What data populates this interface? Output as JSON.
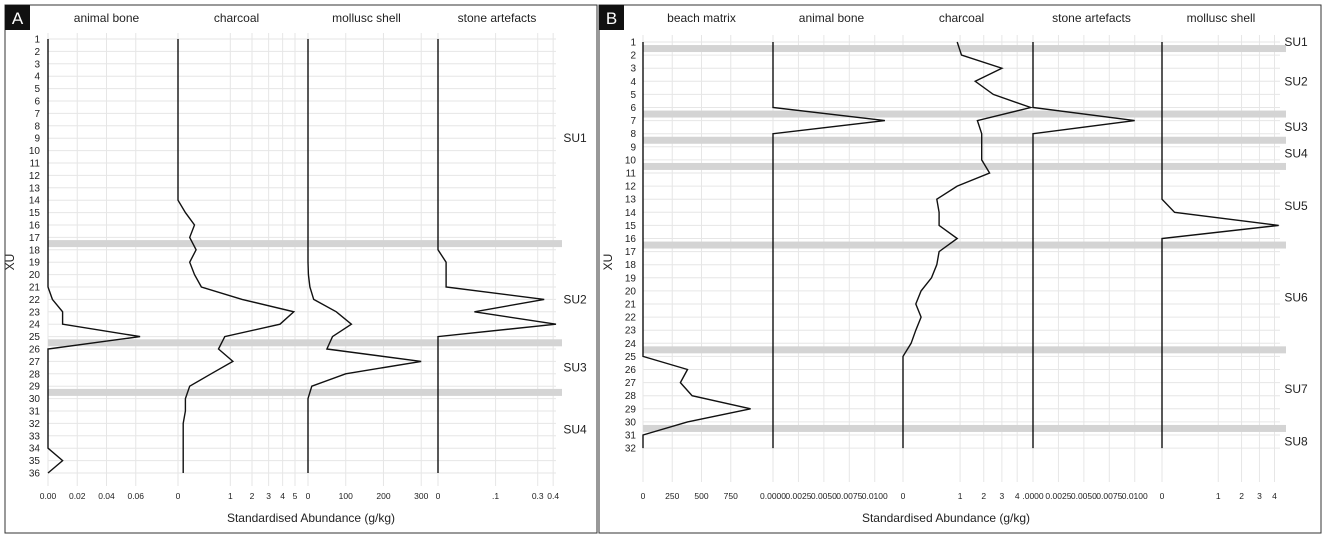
{
  "chart_data": [
    {
      "type": "line",
      "panel_label": "A",
      "ylabel": "XU",
      "xlabel": "Standardised Abundance (g/kg)",
      "y_ticks": [
        "1",
        "2",
        "3",
        "4",
        "5",
        "6",
        "7",
        "8",
        "9",
        "10",
        "11",
        "12",
        "13",
        "14",
        "15",
        "16",
        "17",
        "18",
        "19",
        "20",
        "21",
        "22",
        "23",
        "24",
        "25",
        "26",
        "27",
        "28",
        "29",
        "30",
        "31",
        "32",
        "33",
        "34",
        "35",
        "36"
      ],
      "boundaries": [
        17.5,
        25.5,
        29.5
      ],
      "units": [
        {
          "label": "SU1",
          "y": 9
        },
        {
          "label": "SU2",
          "y": 22
        },
        {
          "label": "SU3",
          "y": 27.5
        },
        {
          "label": "SU4",
          "y": 32.5
        }
      ],
      "series": [
        {
          "name": "animal bone",
          "scale": "linear",
          "xlim": [
            0,
            0.08
          ],
          "ticks": [
            0,
            0.02,
            0.04,
            0.06
          ],
          "tick_labels": [
            "0.00",
            "0.02",
            "0.04",
            "0.06"
          ],
          "values": [
            0,
            0,
            0,
            0,
            0,
            0,
            0,
            0,
            0,
            0,
            0,
            0,
            0,
            0,
            0,
            0,
            0,
            0,
            0,
            0,
            0,
            0.003,
            0.01,
            0.01,
            0.063,
            0,
            0,
            0,
            0,
            0,
            0,
            0,
            0,
            0,
            0.01,
            0
          ]
        },
        {
          "name": "charcoal",
          "scale": "sqrt",
          "xlim": [
            0,
            5
          ],
          "ticks": [
            0,
            1,
            2,
            3,
            4,
            5
          ],
          "tick_labels": [
            "0",
            "1",
            "2",
            "3",
            "4",
            "5"
          ],
          "values": [
            0,
            0,
            0,
            0,
            0,
            0,
            0,
            0,
            0,
            0,
            0,
            0,
            0,
            0,
            0.02,
            0.1,
            0.05,
            0.12,
            0.05,
            0.1,
            0.2,
            1.5,
            4.9,
            3.8,
            0.8,
            0.6,
            1.1,
            0.4,
            0.05,
            0.02,
            0.02,
            0.01,
            0.01,
            0.01,
            0.01,
            0.01
          ]
        },
        {
          "name": "mollusc shell",
          "scale": "linear",
          "xlim": [
            0,
            310
          ],
          "ticks": [
            0,
            100,
            200,
            300
          ],
          "tick_labels": [
            "0",
            "100",
            "200",
            "300"
          ],
          "values": [
            0,
            0,
            0,
            0,
            0,
            0,
            0,
            0,
            0,
            0,
            0,
            0,
            0,
            0,
            0,
            0,
            0,
            0,
            0,
            1,
            5,
            15,
            75,
            115,
            65,
            50,
            300,
            100,
            10,
            0,
            0,
            0,
            0,
            0,
            0,
            0
          ]
        },
        {
          "name": "stone artefacts",
          "scale": "sqrt",
          "xlim": [
            0,
            0.42
          ],
          "ticks": [
            0,
            0.1,
            0.3,
            0.4
          ],
          "tick_labels": [
            "0",
            ".1",
            "0.3",
            "0.4"
          ],
          "values": [
            0,
            0,
            0,
            0,
            0,
            0,
            0,
            0,
            0,
            0,
            0,
            0,
            0,
            0,
            0,
            0,
            0,
            0,
            0.002,
            0.002,
            0.002,
            0.34,
            0.04,
            0.42,
            0,
            0,
            0,
            0,
            0,
            0,
            0,
            0,
            0,
            0,
            0,
            0
          ]
        }
      ]
    },
    {
      "type": "line",
      "panel_label": "B",
      "ylabel": "XU",
      "xlabel": "Standardised Abundance (g/kg)",
      "y_ticks": [
        "1",
        "2",
        "3",
        "4",
        "5",
        "6",
        "7",
        "8",
        "9",
        "10",
        "11",
        "12",
        "13",
        "14",
        "15",
        "16",
        "17",
        "18",
        "19",
        "20",
        "21",
        "22",
        "23",
        "24",
        "25",
        "26",
        "27",
        "28",
        "29",
        "30",
        "31",
        "32"
      ],
      "boundaries": [
        1.5,
        6.5,
        8.5,
        10.5,
        16.5,
        24.5,
        30.5
      ],
      "units": [
        {
          "label": "SU1",
          "y": 1
        },
        {
          "label": "SU2",
          "y": 4
        },
        {
          "label": "SU3",
          "y": 7.5
        },
        {
          "label": "SU4",
          "y": 9.5
        },
        {
          "label": "SU5",
          "y": 13.5
        },
        {
          "label": "SU6",
          "y": 20.5
        },
        {
          "label": "SU7",
          "y": 27.5
        },
        {
          "label": "SU8",
          "y": 31.5
        }
      ],
      "series": [
        {
          "name": "beach matrix",
          "scale": "linear",
          "xlim": [
            0,
            1000
          ],
          "ticks": [
            0,
            250,
            500,
            750
          ],
          "tick_labels": [
            "0",
            "250",
            "500",
            "750"
          ],
          "values": [
            0,
            0,
            0,
            0,
            0,
            0,
            0,
            0,
            0,
            0,
            0,
            0,
            0,
            0,
            0,
            0,
            0,
            0,
            0,
            0,
            0,
            0,
            0,
            0,
            0,
            380,
            320,
            420,
            920,
            380,
            0,
            0
          ]
        },
        {
          "name": "animal bone",
          "scale": "linear",
          "xlim": [
            0,
            0.0115
          ],
          "ticks": [
            0,
            0.0025,
            0.005,
            0.0075,
            0.01
          ],
          "tick_labels": [
            "0.0000",
            "0.0025",
            "0.0050",
            "0.0075",
            "0.0100"
          ],
          "values": [
            0,
            0,
            0,
            0,
            0,
            0,
            0.011,
            0,
            0,
            0,
            0,
            0,
            0,
            0,
            0,
            0,
            0,
            0,
            0,
            0,
            0,
            0,
            0,
            0,
            0,
            0,
            0,
            0,
            0,
            0,
            0,
            0
          ]
        },
        {
          "name": "charcoal",
          "scale": "sqrt",
          "xlim": [
            0,
            4.2
          ],
          "ticks": [
            0,
            1,
            2,
            3,
            4
          ],
          "tick_labels": [
            "0",
            "1",
            "2",
            "3",
            "4"
          ],
          "values": [
            0.9,
            1.05,
            3.0,
            1.6,
            2.5,
            5.0,
            1.7,
            1.9,
            1.9,
            1.9,
            2.3,
            0.9,
            0.35,
            0.4,
            0.4,
            0.9,
            0.4,
            0.35,
            0.25,
            0.1,
            0.05,
            0.1,
            0.05,
            0.02,
            0,
            0,
            0,
            0,
            0,
            0,
            0,
            0
          ]
        },
        {
          "name": "stone artefacts",
          "scale": "linear",
          "xlim": [
            0,
            0.0115
          ],
          "ticks": [
            0,
            0.0025,
            0.005,
            0.0075,
            0.01
          ],
          "tick_labels": [
            ".0000",
            "0.0025",
            "0.0050",
            "0.0075",
            "0.0100"
          ],
          "values": [
            0,
            0,
            0,
            0,
            0,
            0,
            0.01,
            0,
            0,
            0,
            0,
            0,
            0,
            0,
            0,
            0,
            0,
            0,
            0,
            0,
            0,
            0,
            0,
            0,
            0,
            0,
            0,
            0,
            0,
            0,
            0,
            0
          ]
        },
        {
          "name": "mollusc shell",
          "scale": "sqrt",
          "xlim": [
            0,
            4.4
          ],
          "ticks": [
            0,
            1,
            2,
            3,
            4
          ],
          "tick_labels": [
            "0",
            "1",
            "2",
            "3",
            "4"
          ],
          "values": [
            0,
            0,
            0,
            0,
            0,
            0,
            0,
            0,
            0,
            0,
            0,
            0,
            0,
            0.05,
            4.3,
            0,
            0,
            0,
            0,
            0,
            0,
            0,
            0,
            0,
            0,
            0,
            0,
            0,
            0,
            0,
            0,
            0
          ]
        }
      ]
    }
  ]
}
